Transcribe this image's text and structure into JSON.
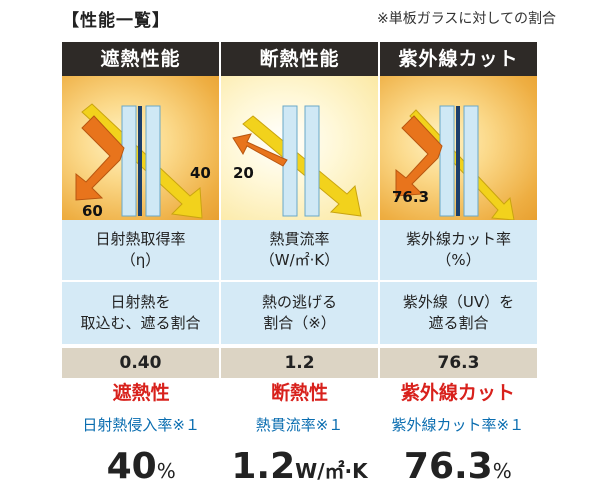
{
  "header": {
    "title": "【性能一覧】",
    "note": "※単板ガラスに対しての割合"
  },
  "columns": [
    {
      "heading": "遮熱性能",
      "diagram_labels": [
        "60",
        "40"
      ],
      "metric_line1": "日射熱取得率",
      "metric_line2": "（η）",
      "desc_line1": "日射熱を",
      "desc_line2": "取込む、遮る割合",
      "value": "0.40",
      "summary_title": "遮熱性",
      "summary_sub": "日射熱侵入率※１",
      "summary_num": "40",
      "summary_unit": "%"
    },
    {
      "heading": "断熱性能",
      "diagram_labels": [
        "20"
      ],
      "metric_line1": "熱貫流率",
      "metric_line2": "（W/㎡·K）",
      "desc_line1": "熱の逃げる",
      "desc_line2": "割合（※）",
      "value": "1.2",
      "summary_title": "断熱性",
      "summary_sub": "熱貫流率※１",
      "summary_num": "1.2",
      "summary_unit": "W/㎡·K"
    },
    {
      "heading": "紫外線カット",
      "diagram_labels": [
        "76.3"
      ],
      "metric_line1": "紫外線カット率",
      "metric_line2": "（%）",
      "desc_line1": "紫外線（UV）を",
      "desc_line2": "遮る割合",
      "value": "76.3",
      "summary_title": "紫外線カット",
      "summary_sub": "紫外線カット率※１",
      "summary_num": "76.3",
      "summary_unit": "%"
    }
  ],
  "colors": {
    "header_bg": "#2e2a27",
    "info_bg": "#d5eaf6",
    "value_bg": "#dcd4c4",
    "accent_red": "#d8211c",
    "accent_blue": "#0a6db0",
    "arrow_orange": "#e8741c",
    "arrow_yellow": "#f2d21c"
  }
}
